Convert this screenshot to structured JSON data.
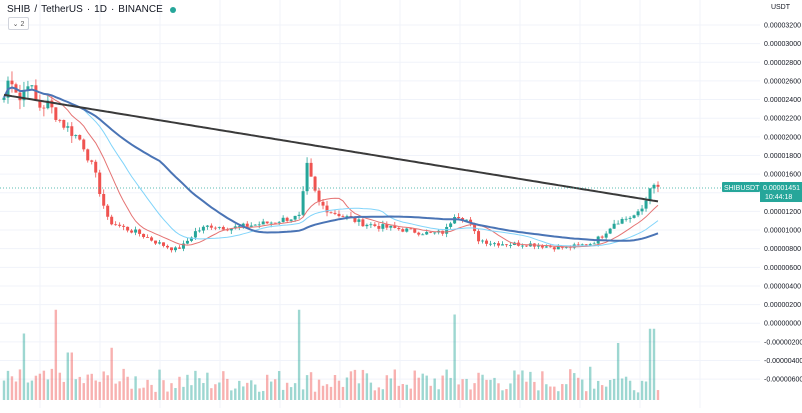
{
  "header": {
    "symbol": "SHIB",
    "separator1": "/",
    "quote": "TetherUS",
    "separator2": "·",
    "interval": "1D",
    "separator3": "·",
    "exchange": "BINANCE",
    "collapse_label": "⌄ 2",
    "status_color": "#26a69a"
  },
  "price_axis": {
    "currency": "USDT",
    "labels": [
      "0.00003200",
      "0.00003000",
      "0.00002800",
      "0.00002600",
      "0.00002400",
      "0.00002200",
      "0.00002000",
      "0.00001800",
      "0.00001600",
      "0.00001200",
      "0.00001000",
      "0.00000800",
      "0.00000600",
      "0.00000400",
      "0.00000200",
      "0.00000000",
      "-0.00000200",
      "-0.00000400",
      "-0.00000600"
    ]
  },
  "last_price_tag": {
    "symbol": "SHIBUSDT",
    "price": "0.00001451",
    "countdown": "10:44:18",
    "color": "#26a69a"
  },
  "chart_data": {
    "type": "candlestick",
    "symbol": "SHIB / TetherUS · 1D · BINANCE",
    "ylim": [
      -6e-06,
      3.34e-05
    ],
    "up_color": "#26a69a",
    "down_color": "#ef5350",
    "anchors": [
      [
        0,
        2.25e-05
      ],
      [
        10,
        2.68e-05
      ],
      [
        20,
        2.4e-05
      ],
      [
        28,
        2.61e-05
      ],
      [
        38,
        2.32e-05
      ],
      [
        48,
        2.35e-05
      ],
      [
        62,
        2.15e-05
      ],
      [
        82,
        1.95e-05
      ],
      [
        95,
        1.6e-05
      ],
      [
        108,
        1.1e-05
      ],
      [
        122,
        1.03e-05
      ],
      [
        140,
        9.6e-06
      ],
      [
        158,
        8.6e-06
      ],
      [
        175,
        7.9e-06
      ],
      [
        183,
        8.3e-06
      ],
      [
        195,
        9.8e-06
      ],
      [
        210,
        1.05e-05
      ],
      [
        230,
        1.02e-05
      ],
      [
        250,
        1.05e-05
      ],
      [
        270,
        1.08e-05
      ],
      [
        285,
        1.12e-05
      ],
      [
        300,
        1.14e-05
      ],
      [
        307,
        1.68e-05
      ],
      [
        318,
        1.3e-05
      ],
      [
        330,
        1.2e-05
      ],
      [
        342,
        1.16e-05
      ],
      [
        360,
        1.08e-05
      ],
      [
        378,
        1.04e-05
      ],
      [
        400,
        1.01e-05
      ],
      [
        418,
        9.8e-06
      ],
      [
        432,
        9.6e-06
      ],
      [
        445,
        9.8e-06
      ],
      [
        455,
        1.18e-05
      ],
      [
        468,
        1.1e-05
      ],
      [
        478,
        9e-06
      ],
      [
        492,
        8.6e-06
      ],
      [
        510,
        8.5e-06
      ],
      [
        530,
        8.5e-06
      ],
      [
        550,
        8.2e-06
      ],
      [
        565,
        8.1e-06
      ],
      [
        578,
        8.3e-06
      ],
      [
        592,
        8.6e-06
      ],
      [
        602,
        9.4e-06
      ],
      [
        615,
        1.09e-05
      ],
      [
        628,
        1.13e-05
      ],
      [
        640,
        1.18e-05
      ],
      [
        646,
        1.32e-05
      ],
      [
        650,
        1.48e-05
      ],
      [
        654,
        1.45e-05
      ]
    ],
    "moving_averages": [
      {
        "period": 10,
        "color": "#e57373"
      },
      {
        "period": 20,
        "color": "#81d4fa"
      },
      {
        "period": 40,
        "color": "#4a74b5"
      },
      {
        "period": 150,
        "color": "#3a3a3a"
      }
    ],
    "volume_spikes": [
      [
        24,
        0.7
      ],
      [
        55,
        0.95
      ],
      [
        70,
        0.5
      ],
      [
        300,
        0.95
      ],
      [
        456,
        0.9
      ],
      [
        618,
        0.6
      ],
      [
        652,
        0.75
      ],
      [
        112,
        0.55
      ],
      [
        590,
        0.35
      ]
    ]
  }
}
